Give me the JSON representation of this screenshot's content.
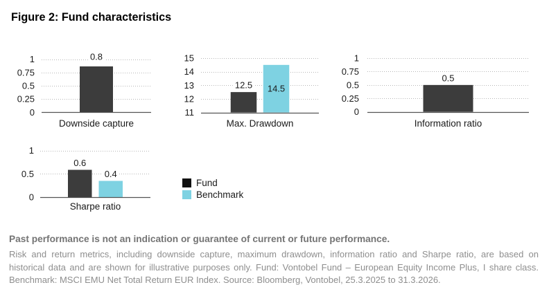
{
  "figure": {
    "title": "Figure 2: Fund characteristics"
  },
  "colors": {
    "fund": "#3c3c3c",
    "fund_legend_marker": "#111111",
    "benchmark": "#7ed2e2",
    "grid": "#b5b5b5",
    "axis": "#535353",
    "chart_text": "#1a1a1a",
    "footer_bold_text": "#747474",
    "footer_body_text": "#8e8e8e"
  },
  "legend": {
    "items": [
      {
        "label": "Fund",
        "series": "fund"
      },
      {
        "label": "Benchmark",
        "series": "benchmark"
      }
    ]
  },
  "chart_data": [
    {
      "type": "bar",
      "title": "Downside capture",
      "series": [
        {
          "name": "Fund",
          "value": 0.8,
          "label": "0.8"
        }
      ],
      "ylim": [
        0,
        1
      ],
      "yticks": [
        "1",
        "0.75",
        "0.5",
        "0.25",
        "0"
      ],
      "grid": "dotted"
    },
    {
      "type": "bar",
      "title": "Max. Drawdown",
      "series": [
        {
          "name": "Fund",
          "value": 12.5,
          "label": "12.5"
        },
        {
          "name": "Benchmark",
          "value": 14.5,
          "label": "14.5",
          "label_placement": "inside"
        }
      ],
      "ylim": [
        11,
        15
      ],
      "yticks": [
        "15",
        "14",
        "13",
        "12",
        "11"
      ],
      "grid": "dotted"
    },
    {
      "type": "bar",
      "title": "Information ratio",
      "series": [
        {
          "name": "Fund",
          "value": 0.5,
          "label": "0.5"
        }
      ],
      "ylim": [
        0,
        1
      ],
      "yticks": [
        "1",
        "0.75",
        "0.5",
        "0.25",
        "0"
      ],
      "grid": "dotted"
    },
    {
      "type": "bar",
      "title": "Sharpe ratio",
      "series": [
        {
          "name": "Fund",
          "value": 0.6,
          "label": "0.6"
        },
        {
          "name": "Benchmark",
          "value": 0.4,
          "label": "0.4"
        }
      ],
      "ylim": [
        0,
        1
      ],
      "yticks": [
        "1",
        "0.5",
        "0"
      ],
      "grid": "dotted"
    }
  ],
  "footer": {
    "bold_line": "Past performance is not an indication or guarantee of current or future performance.",
    "lines": [
      "Risk and return metrics, including downside capture, maximum drawdown, information ratio and Sharpe ratio, are based on",
      "historical data and are shown for illustrative purposes only. Fund: Vontobel Fund – European Equity Income Plus, I share class.",
      "Benchmark: MSCI EMU Net Total Return EUR Index. Source: Bloomberg, Vontobel, 25.3.2025 to 31.3.2026."
    ]
  }
}
